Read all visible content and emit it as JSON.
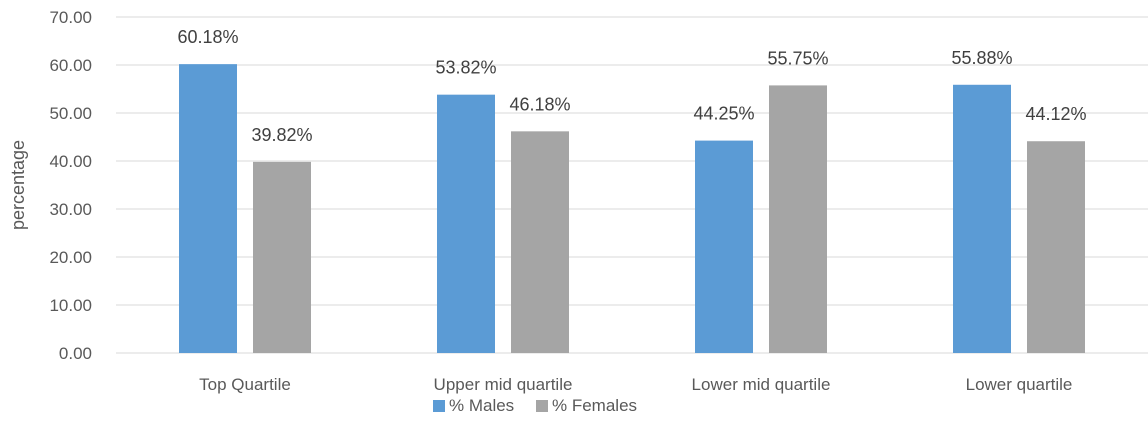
{
  "chart_data": {
    "type": "bar",
    "categories": [
      "Top Quartile",
      "Upper mid quartile",
      "Lower mid quartile",
      "Lower quartile"
    ],
    "series": [
      {
        "name": "% Males",
        "values": [
          60.18,
          53.82,
          44.25,
          55.88
        ],
        "labels": [
          "60.18%",
          "53.82%",
          "44.25%",
          "55.88%"
        ],
        "color": "#5B9BD5"
      },
      {
        "name": "% Females",
        "values": [
          39.82,
          46.18,
          55.75,
          44.12
        ],
        "labels": [
          "39.82%",
          "46.18%",
          "55.75%",
          "44.12%"
        ],
        "color": "#A5A5A5"
      }
    ],
    "ylabel": "percentage",
    "ylim": [
      0,
      70
    ],
    "yticks": [
      "0.00",
      "10.00",
      "20.00",
      "30.00",
      "40.00",
      "50.00",
      "60.00",
      "70.00"
    ],
    "ytick_values": [
      0,
      10,
      20,
      30,
      40,
      50,
      60,
      70
    ],
    "grid": true,
    "legend_position": "bottom"
  }
}
